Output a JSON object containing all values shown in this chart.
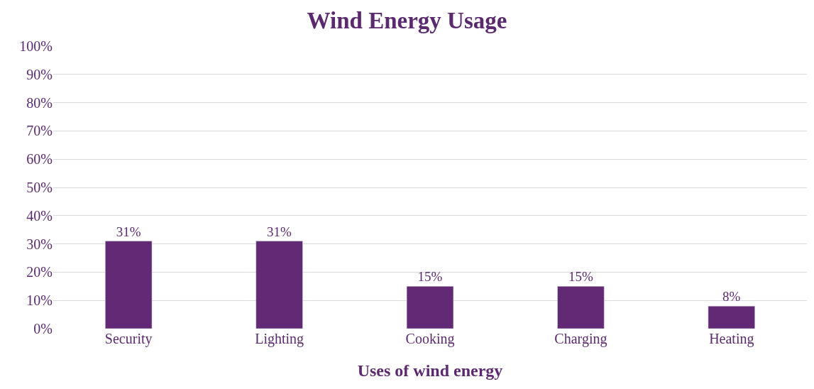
{
  "chart_data": {
    "type": "bar",
    "title": "Wind Energy Usage",
    "xlabel": "Uses of wind energy",
    "categories": [
      "Security",
      "Lighting",
      "Cooking",
      "Charging",
      "Heating"
    ],
    "values": [
      31,
      31,
      15,
      15,
      8
    ],
    "value_labels": [
      "31%",
      "31%",
      "15%",
      "15%",
      "8%"
    ],
    "color": "#622a74",
    "ylim": [
      0,
      100
    ],
    "yticks": [
      {
        "value": 0,
        "label": "0%"
      },
      {
        "value": 10,
        "label": "10%"
      },
      {
        "value": 20,
        "label": "20%"
      },
      {
        "value": 30,
        "label": "30%"
      },
      {
        "value": 40,
        "label": "40%"
      },
      {
        "value": 50,
        "label": "50%"
      },
      {
        "value": 60,
        "label": "60%"
      },
      {
        "value": 70,
        "label": "70%"
      },
      {
        "value": 80,
        "label": "80%"
      },
      {
        "value": 90,
        "label": "90%"
      },
      {
        "value": 100,
        "label": "100%"
      }
    ],
    "grid": "y",
    "legend": false
  }
}
